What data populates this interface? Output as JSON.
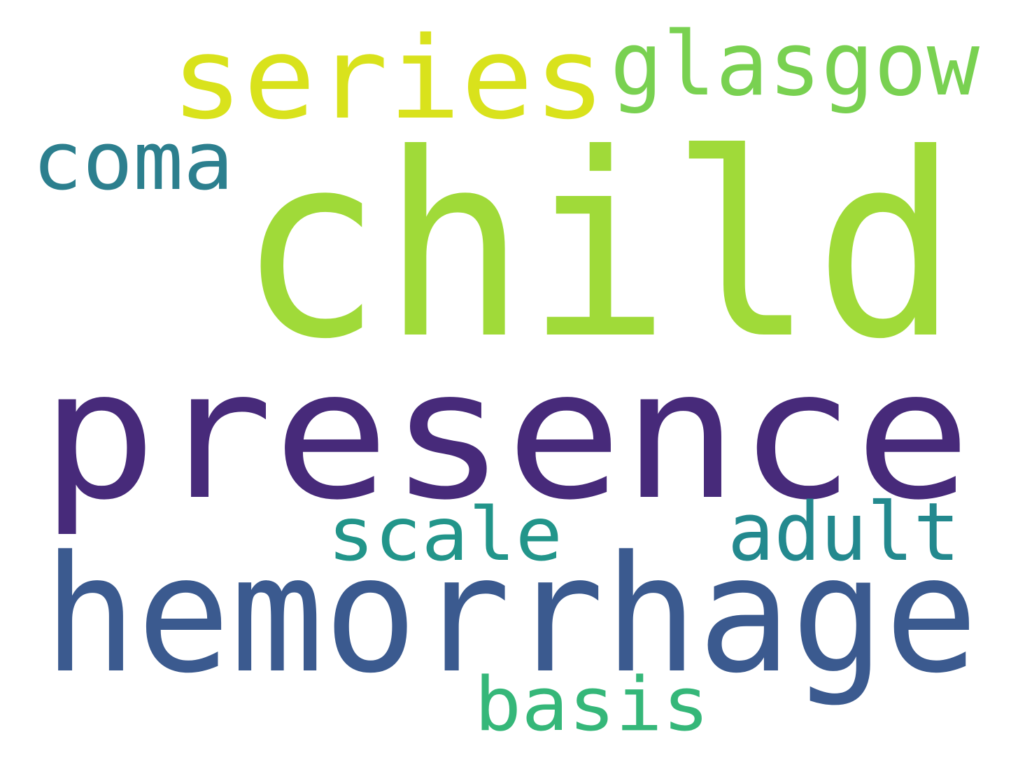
{
  "background": "#ffffff",
  "words": [
    {
      "text": "child",
      "color": "#a0da39"
    },
    {
      "text": "presence",
      "color": "#472a7a"
    },
    {
      "text": "hemorrhage",
      "color": "#3b5a8f"
    },
    {
      "text": "series",
      "color": "#d9e21c"
    },
    {
      "text": "glasgow",
      "color": "#79d151"
    },
    {
      "text": "coma",
      "color": "#2c7f8e"
    },
    {
      "text": "scale",
      "color": "#22958a"
    },
    {
      "text": "adult",
      "color": "#23898e"
    },
    {
      "text": "basis",
      "color": "#35b779"
    }
  ]
}
